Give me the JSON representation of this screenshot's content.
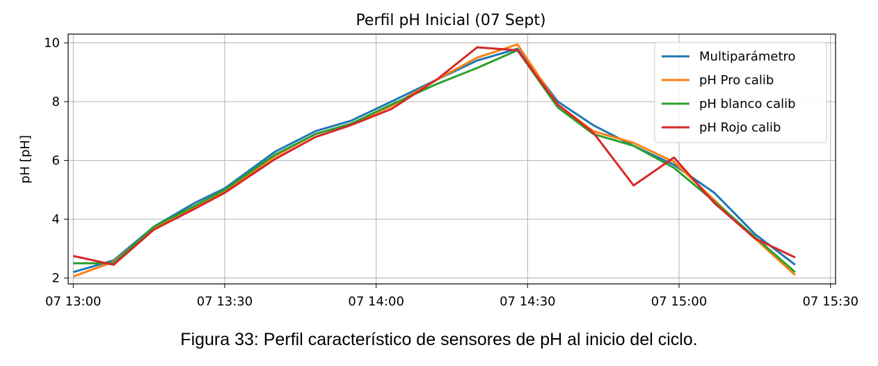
{
  "chart_data": {
    "type": "line",
    "title": "Perfil pH Inicial (07 Sept)",
    "xlabel": "",
    "ylabel": "pH [pH]",
    "x_ticks": [
      "07 13:00",
      "07 13:30",
      "07 14:00",
      "07 14:30",
      "07 15:00",
      "07 15:30"
    ],
    "xlim": [
      "13:00",
      "15:30"
    ],
    "y_ticks": [
      2,
      4,
      6,
      8,
      10
    ],
    "ylim": [
      1.8,
      10.3
    ],
    "grid": true,
    "legend_position": "top-right",
    "series": [
      {
        "name": "Multiparámetro",
        "color": "#1f77b4",
        "points": [
          [
            "13:00",
            2.2
          ],
          [
            "13:08",
            2.6
          ],
          [
            "13:16",
            3.75
          ],
          [
            "13:24",
            4.55
          ],
          [
            "13:30",
            5.05
          ],
          [
            "13:40",
            6.3
          ],
          [
            "13:48",
            7.0
          ],
          [
            "13:55",
            7.35
          ],
          [
            "14:03",
            8.0
          ],
          [
            "14:12",
            8.75
          ],
          [
            "14:20",
            9.4
          ],
          [
            "14:28",
            9.8
          ],
          [
            "14:36",
            8.0
          ],
          [
            "14:43",
            7.2
          ],
          [
            "14:51",
            6.5
          ],
          [
            "14:59",
            5.85
          ],
          [
            "15:07",
            4.9
          ],
          [
            "15:15",
            3.5
          ],
          [
            "15:23",
            2.45
          ]
        ]
      },
      {
        "name": "pH Pro calib",
        "color": "#ff7f0e",
        "points": [
          [
            "13:00",
            2.05
          ],
          [
            "13:08",
            2.55
          ],
          [
            "13:16",
            3.7
          ],
          [
            "13:24",
            4.4
          ],
          [
            "13:30",
            4.95
          ],
          [
            "13:40",
            6.15
          ],
          [
            "13:48",
            6.9
          ],
          [
            "13:55",
            7.25
          ],
          [
            "14:03",
            7.85
          ],
          [
            "14:12",
            8.75
          ],
          [
            "14:20",
            9.5
          ],
          [
            "14:28",
            9.95
          ],
          [
            "14:36",
            7.9
          ],
          [
            "14:43",
            7.0
          ],
          [
            "14:51",
            6.6
          ],
          [
            "14:59",
            5.95
          ],
          [
            "15:07",
            4.65
          ],
          [
            "15:15",
            3.35
          ],
          [
            "15:23",
            2.1
          ]
        ]
      },
      {
        "name": "pH blanco calib",
        "color": "#2ca02c",
        "points": [
          [
            "13:00",
            2.5
          ],
          [
            "13:08",
            2.5
          ],
          [
            "13:16",
            3.75
          ],
          [
            "13:24",
            4.45
          ],
          [
            "13:30",
            5.0
          ],
          [
            "13:40",
            6.2
          ],
          [
            "13:48",
            6.9
          ],
          [
            "13:55",
            7.25
          ],
          [
            "14:03",
            7.9
          ],
          [
            "14:12",
            8.6
          ],
          [
            "14:20",
            9.15
          ],
          [
            "14:28",
            9.75
          ],
          [
            "14:36",
            7.8
          ],
          [
            "14:43",
            6.9
          ],
          [
            "14:51",
            6.5
          ],
          [
            "14:59",
            5.75
          ],
          [
            "15:07",
            4.6
          ],
          [
            "15:15",
            3.4
          ],
          [
            "15:23",
            2.2
          ]
        ]
      },
      {
        "name": "pH Rojo calib",
        "color": "#d62728",
        "points": [
          [
            "13:00",
            2.75
          ],
          [
            "13:08",
            2.45
          ],
          [
            "13:16",
            3.65
          ],
          [
            "13:24",
            4.35
          ],
          [
            "13:30",
            4.9
          ],
          [
            "13:40",
            6.05
          ],
          [
            "13:48",
            6.8
          ],
          [
            "13:55",
            7.2
          ],
          [
            "14:03",
            7.75
          ],
          [
            "14:12",
            8.75
          ],
          [
            "14:20",
            9.85
          ],
          [
            "14:28",
            9.75
          ],
          [
            "14:36",
            7.9
          ],
          [
            "14:43",
            6.95
          ],
          [
            "14:51",
            5.15
          ],
          [
            "14:59",
            6.1
          ],
          [
            "15:07",
            4.55
          ],
          [
            "15:15",
            3.35
          ],
          [
            "15:23",
            2.7
          ]
        ]
      }
    ]
  },
  "caption": "Figura 33: Perfil característico de sensores de pH al inicio del ciclo."
}
